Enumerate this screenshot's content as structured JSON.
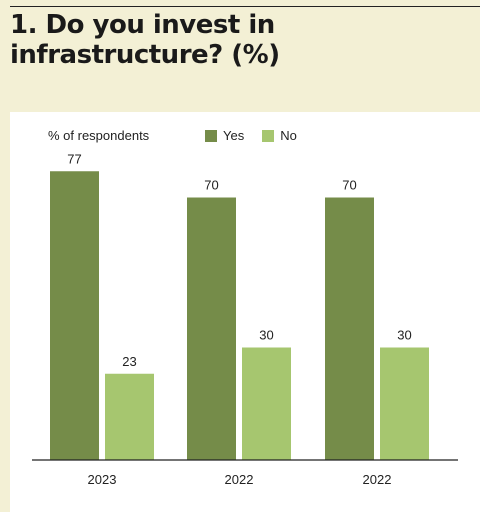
{
  "title": "1. Do you invest in infrastructure? (%)",
  "chart_data": {
    "type": "bar",
    "ylabel": "% of respondents",
    "categories": [
      "2023",
      "2022",
      "2022"
    ],
    "series": [
      {
        "name": "Yes",
        "values": [
          77,
          70,
          70
        ],
        "color": "#758c49"
      },
      {
        "name": "No",
        "values": [
          23,
          30,
          30
        ],
        "color": "#a6c66f"
      }
    ],
    "ylim": [
      0,
      80
    ],
    "legend": "top",
    "grid": false
  }
}
